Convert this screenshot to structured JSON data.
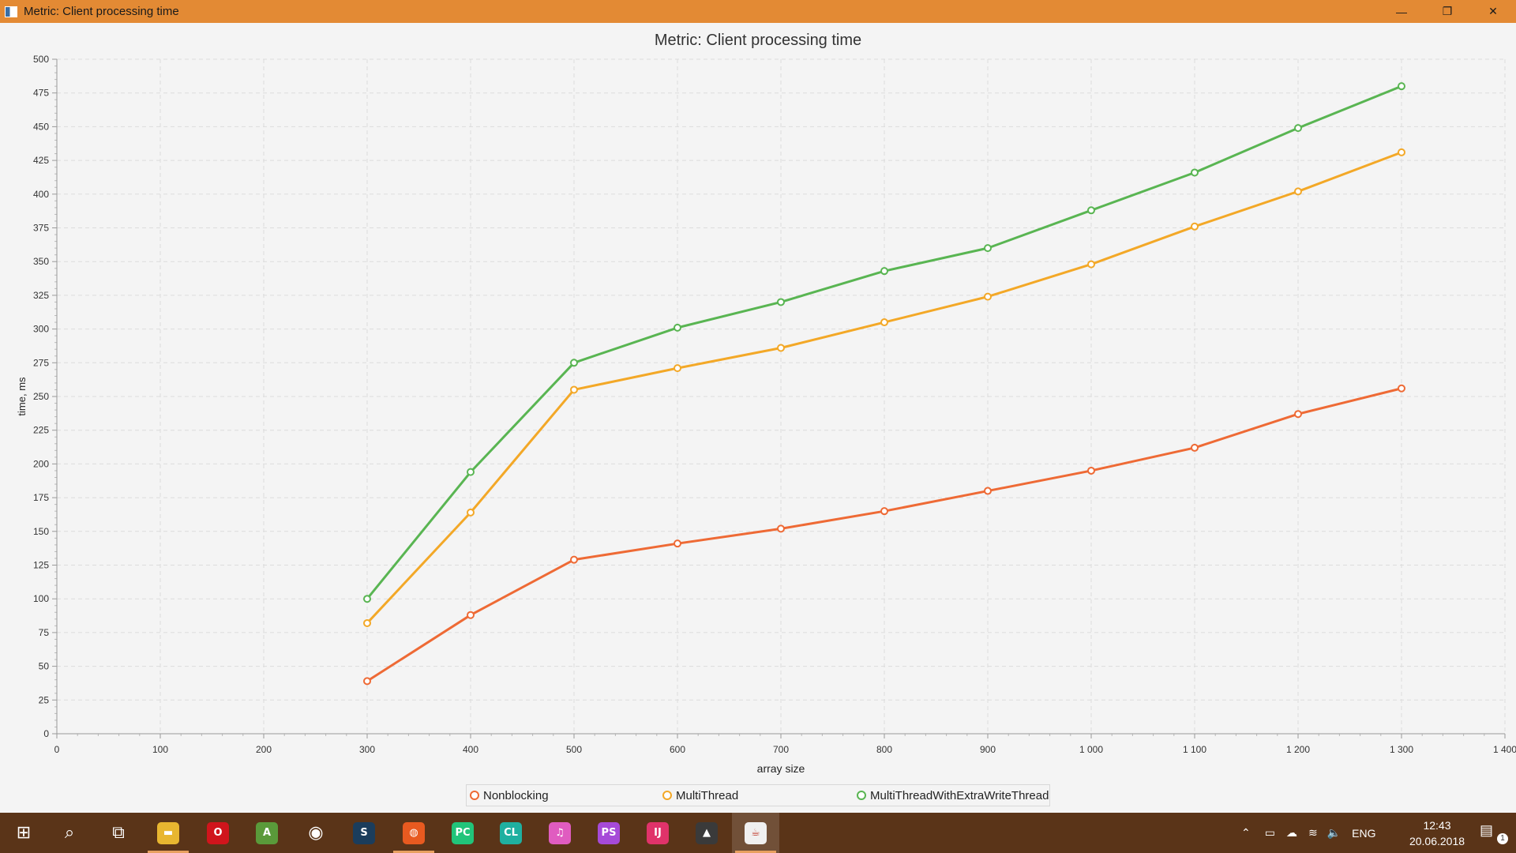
{
  "window": {
    "title": "Metric: Client processing time",
    "controls": {
      "minimize": "—",
      "maximize": "❐",
      "close": "✕"
    }
  },
  "chart_data": {
    "type": "line",
    "title": "Metric: Client processing time",
    "xlabel": "array size",
    "ylabel": "time, ms",
    "xlim": [
      0,
      1400
    ],
    "ylim": [
      0,
      500
    ],
    "x_ticks": [
      0,
      100,
      200,
      300,
      400,
      500,
      600,
      700,
      800,
      900,
      1000,
      1100,
      1200,
      1300,
      1400
    ],
    "x_tick_labels": [
      "0",
      "100",
      "200",
      "300",
      "400",
      "500",
      "600",
      "700",
      "800",
      "900",
      "1 000",
      "1 100",
      "1 200",
      "1 300",
      "1 400"
    ],
    "y_ticks": [
      0,
      25,
      50,
      75,
      100,
      125,
      150,
      175,
      200,
      225,
      250,
      275,
      300,
      325,
      350,
      375,
      400,
      425,
      450,
      475,
      500
    ],
    "grid": true,
    "legend_position": "bottom",
    "x": [
      300,
      400,
      500,
      600,
      700,
      800,
      900,
      1000,
      1100,
      1200,
      1300
    ],
    "series": [
      {
        "name": "Nonblocking",
        "color": "#ee6a35",
        "values": [
          39,
          88,
          129,
          141,
          152,
          165,
          180,
          195,
          212,
          237,
          256
        ]
      },
      {
        "name": "MultiThread",
        "color": "#f3a827",
        "values": [
          82,
          164,
          255,
          271,
          286,
          305,
          324,
          348,
          376,
          402,
          431
        ]
      },
      {
        "name": "MultiThreadWithExtraWriteThread",
        "color": "#59b552",
        "values": [
          100,
          194,
          275,
          301,
          320,
          343,
          360,
          388,
          416,
          449,
          480
        ]
      }
    ]
  },
  "taskbar": {
    "apps": [
      {
        "name": "start",
        "icon": "windows-start-icon",
        "glyph": "⊞",
        "color": "transparent"
      },
      {
        "name": "search",
        "icon": "search-icon",
        "glyph": "⌕",
        "color": "transparent"
      },
      {
        "name": "task-view",
        "icon": "task-view-icon",
        "glyph": "⧉",
        "color": "transparent"
      },
      {
        "name": "file-explorer",
        "icon": "folder-icon",
        "glyph": "▬",
        "color": "#e8b630"
      },
      {
        "name": "opera",
        "icon": "opera-icon",
        "glyph": "O",
        "color": "#d0151c"
      },
      {
        "name": "android-studio",
        "icon": "android-studio-icon",
        "glyph": "A",
        "color": "#5a9a3a"
      },
      {
        "name": "media-player",
        "icon": "media-player-icon",
        "glyph": "◉",
        "color": "transparent"
      },
      {
        "name": "steam",
        "icon": "steam-icon",
        "glyph": "S",
        "color": "#1b3d5c"
      },
      {
        "name": "ubuntu",
        "icon": "ubuntu-icon",
        "glyph": "◍",
        "color": "#e85a20"
      },
      {
        "name": "pycharm",
        "icon": "pycharm-icon",
        "glyph": "PC",
        "color": "#21c47a"
      },
      {
        "name": "clion",
        "icon": "clion-icon",
        "glyph": "CL",
        "color": "#1fb0a0"
      },
      {
        "name": "itunes",
        "icon": "itunes-icon",
        "glyph": "♫",
        "color": "#e05cc0"
      },
      {
        "name": "phpstorm",
        "icon": "phpstorm-icon",
        "glyph": "PS",
        "color": "#a64ad8"
      },
      {
        "name": "intellij",
        "icon": "intellij-icon",
        "glyph": "IJ",
        "color": "#e0336a"
      },
      {
        "name": "photos",
        "icon": "photos-icon",
        "glyph": "▲",
        "color": "#3a3a3a"
      },
      {
        "name": "java",
        "icon": "java-icon",
        "glyph": "☕",
        "color": "#f0f0f0"
      }
    ],
    "tray": {
      "language": "ENG",
      "time": "12:43",
      "date": "20.06.2018",
      "notifications": "1"
    }
  }
}
